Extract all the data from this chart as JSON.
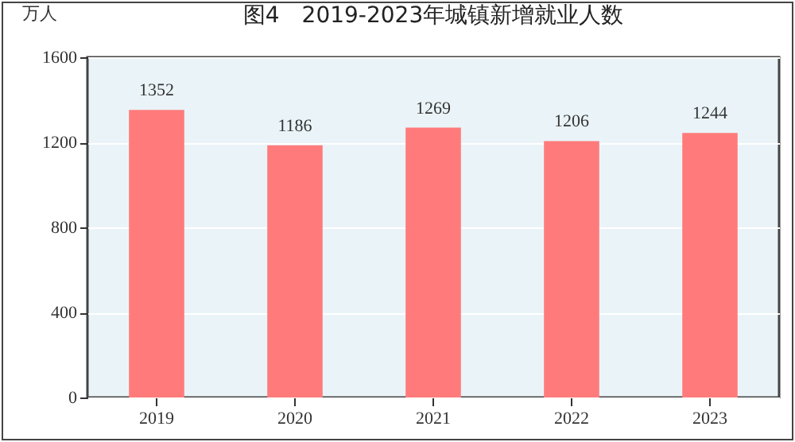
{
  "chart_data": {
    "type": "bar",
    "title": "图4　2019-2023年城镇新增就业人数",
    "ylabel": "万人",
    "categories": [
      "2019",
      "2020",
      "2021",
      "2022",
      "2023"
    ],
    "values": [
      1352,
      1186,
      1269,
      1206,
      1244
    ],
    "color": "#ff7b7b",
    "ylim": [
      0,
      1600
    ],
    "yticks": [
      0,
      400,
      800,
      1200,
      1600
    ],
    "grid": "y",
    "data_labels": true
  }
}
